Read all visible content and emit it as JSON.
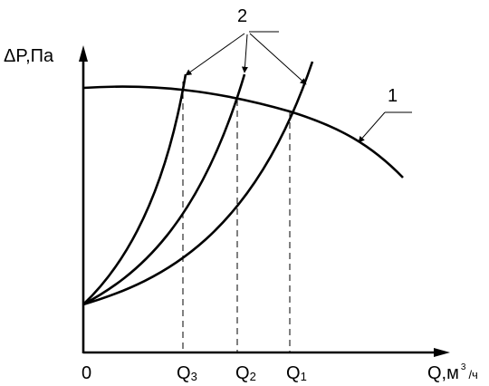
{
  "axes": {
    "y_label": "ΔP,Па",
    "x_label_main": "Q,м",
    "x_label_sup": "3",
    "x_label_unit": "/ч",
    "origin": "0"
  },
  "flow_marks": [
    {
      "letter": "Q",
      "sub": "3"
    },
    {
      "letter": "Q",
      "sub": "2"
    },
    {
      "letter": "Q",
      "sub": "1"
    }
  ],
  "callouts": {
    "fan_curve": "1",
    "network_curves": "2"
  }
}
